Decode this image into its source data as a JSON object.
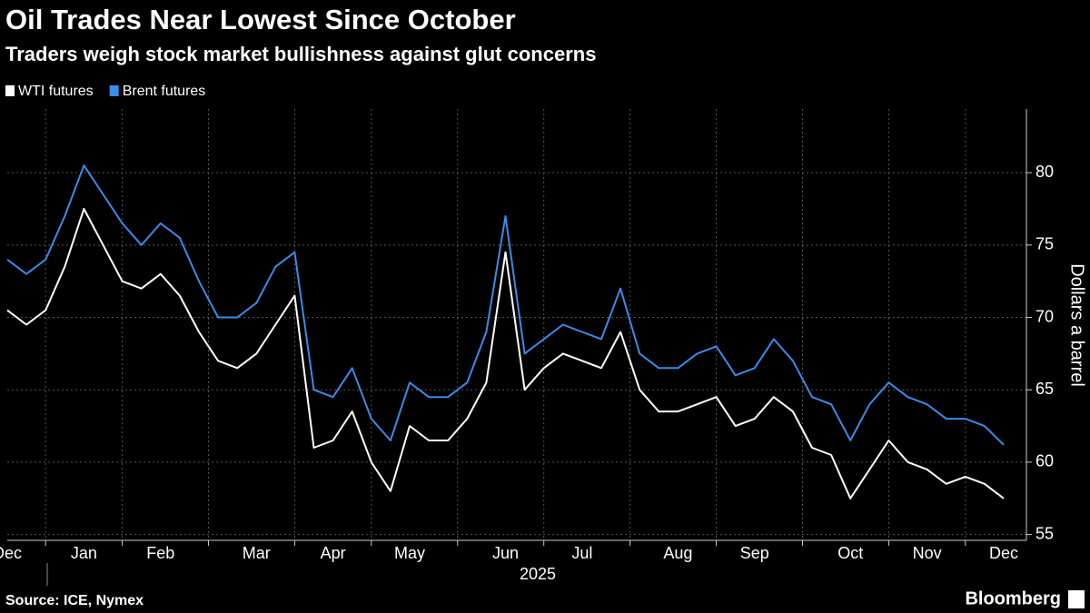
{
  "chart_data": {
    "type": "line",
    "title": "Oil Trades Near Lowest Since October",
    "subtitle": "Traders weigh stock market bullishness against glut concerns",
    "ylabel": "Dollars a barrel",
    "xlabel": "2025",
    "source": "Source: ICE, Nymex",
    "brand": "Bloomberg",
    "categories": [
      "Dec",
      null,
      null,
      null,
      "Jan",
      null,
      null,
      null,
      "Feb",
      null,
      null,
      null,
      null,
      "Mar",
      null,
      null,
      null,
      "Apr",
      null,
      null,
      null,
      "May",
      null,
      null,
      null,
      null,
      "Jun",
      null,
      null,
      null,
      "Jul",
      null,
      null,
      null,
      null,
      "Aug",
      null,
      null,
      null,
      "Sep",
      null,
      null,
      null,
      null,
      "Oct",
      null,
      null,
      null,
      "Nov",
      null,
      null,
      null,
      "Dec"
    ],
    "series": [
      {
        "name": "WTI futures",
        "color": "#ffffff",
        "values": [
          70.5,
          69.5,
          70.5,
          73.5,
          77.5,
          75,
          72.5,
          72,
          73,
          71.5,
          69,
          67,
          66.5,
          67.5,
          69.5,
          71.5,
          61,
          61.5,
          63.5,
          60,
          58,
          62.5,
          61.5,
          61.5,
          63,
          65.5,
          74.5,
          65,
          66.5,
          67.5,
          67,
          66.5,
          69,
          65,
          63.5,
          63.5,
          64,
          64.5,
          62.5,
          63,
          64.5,
          63.5,
          61,
          60.5,
          57.5,
          59.5,
          61.5,
          60,
          59.5,
          58.5,
          59,
          58.5,
          57.5
        ]
      },
      {
        "name": "Brent futures",
        "color": "#3b8be8",
        "values": [
          74,
          73,
          74,
          77,
          80.5,
          78.5,
          76.5,
          75,
          76.5,
          75.5,
          72.5,
          70,
          70,
          71,
          73.5,
          74.5,
          65,
          64.5,
          66.5,
          63,
          61.5,
          65.5,
          64.5,
          64.5,
          65.5,
          69,
          77,
          67.5,
          68.5,
          69.5,
          69,
          68.5,
          72,
          67.5,
          66.5,
          66.5,
          67.5,
          68,
          66,
          66.5,
          68.5,
          67,
          64.5,
          64,
          61.5,
          64,
          65.5,
          64.5,
          64,
          63,
          63,
          62.5,
          61.2
        ]
      }
    ],
    "ylim": [
      54.6,
      84.4
    ],
    "yticks": [
      55,
      60,
      65,
      70,
      75,
      80
    ],
    "grid": true
  }
}
